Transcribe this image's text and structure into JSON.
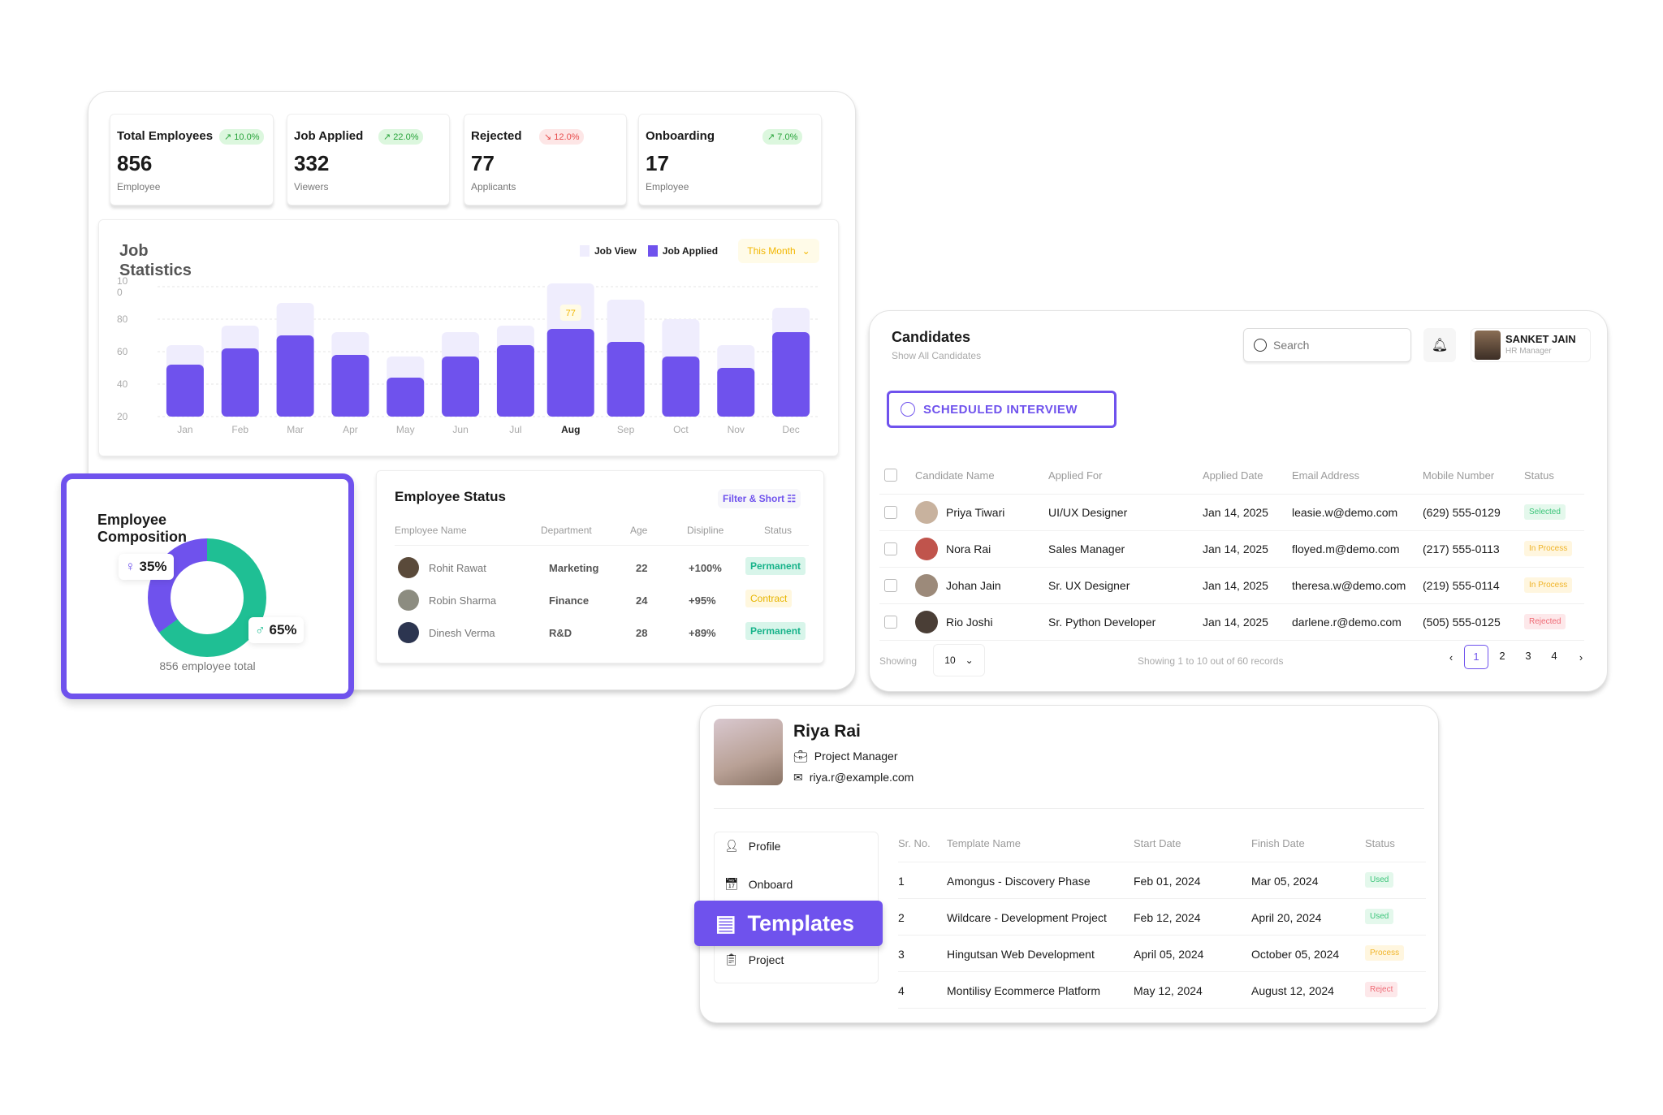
{
  "colors": {
    "accent": "#6f52ed",
    "teal": "#1fbf94",
    "job_view": "#efedfd",
    "yellow": "#f2b600"
  },
  "stats": [
    {
      "title": "Total Employees",
      "value": "856",
      "sub": "Employee",
      "change": "10.0%",
      "trend": "up"
    },
    {
      "title": "Job Applied",
      "value": "332",
      "sub": "Viewers",
      "change": "22.0%",
      "trend": "up"
    },
    {
      "title": "Rejected",
      "value": "77",
      "sub": "Applicants",
      "change": "12.0%",
      "trend": "down"
    },
    {
      "title": "Onboarding",
      "value": "17",
      "sub": "Employee",
      "change": "7.0%",
      "trend": "up"
    }
  ],
  "job_stats": {
    "title_line1": "Job",
    "title_line2": "Statistics",
    "period": "This Month",
    "highlight_label": "77"
  },
  "chart_data": {
    "type": "bar",
    "title": "Job Statistics",
    "categories": [
      "Jan",
      "Feb",
      "Mar",
      "Apr",
      "May",
      "Jun",
      "Jul",
      "Aug",
      "Sep",
      "Oct",
      "Nov",
      "Dec"
    ],
    "highlighted_category": "Aug",
    "series": [
      {
        "name": "Job View",
        "values": [
          64,
          76,
          90,
          72,
          57,
          72,
          76,
          102,
          92,
          80,
          64,
          87
        ],
        "color": "#efedfd"
      },
      {
        "name": "Job Applied",
        "values": [
          52,
          62,
          70,
          58,
          44,
          57,
          64,
          74,
          66,
          57,
          50,
          72
        ],
        "color": "#6f52ed"
      }
    ],
    "yticks": [
      "20",
      "40",
      "60",
      "80",
      "10\n0"
    ],
    "ylim": [
      20,
      100
    ],
    "grid": true,
    "legend": "top-right"
  },
  "composition": {
    "title_line1": "Employee",
    "title_line2": "Composition",
    "female_pct": "35%",
    "male_pct": "65%",
    "female_value": 35,
    "male_value": 65,
    "total_text": "856 employee total"
  },
  "employee_status": {
    "title": "Employee Status",
    "filter_label": "Filter & Short",
    "columns": [
      "Employee Name",
      "Department",
      "Age",
      "Disipline",
      "Status"
    ],
    "rows": [
      {
        "name": "Rohit Rawat",
        "dept": "Marketing",
        "age": "22",
        "disc": "+100%",
        "status": "Permanent"
      },
      {
        "name": "Robin Sharma",
        "dept": "Finance",
        "age": "24",
        "disc": "+95%",
        "status": "Contract"
      },
      {
        "name": "Dinesh Verma",
        "dept": "R&D",
        "age": "28",
        "disc": "+89%",
        "status": "Permanent"
      }
    ]
  },
  "candidates": {
    "title": "Candidates",
    "subtitle": "Show All Candidates",
    "search_placeholder": "Search",
    "user_name": "SANKET JAIN",
    "user_role": "HR Manager",
    "scheduled_label": "SCHEDULED INTERVIEW",
    "columns": [
      "Candidate Name",
      "Applied For",
      "Applied Date",
      "Email Address",
      "Mobile Number",
      "Status"
    ],
    "rows": [
      {
        "name": "Priya Tiwari",
        "role": "UI/UX Designer",
        "date": "Jan 14, 2025",
        "email": "leasie.w@demo.com",
        "phone": "(629) 555-0129",
        "status": "Selected"
      },
      {
        "name": "Nora Rai",
        "role": "Sales Manager",
        "date": "Jan 14, 2025",
        "email": "floyed.m@demo.com",
        "phone": "(217) 555-0113",
        "status": "In Process"
      },
      {
        "name": "Johan Jain",
        "role": "Sr. UX Designer",
        "date": "Jan 14, 2025",
        "email": "theresa.w@demo.com",
        "phone": "(219) 555-0114",
        "status": "In Process"
      },
      {
        "name": "Rio Joshi",
        "role": "Sr. Python Developer",
        "date": "Jan 14, 2025",
        "email": "darlene.r@demo.com",
        "phone": "(505) 555-0125",
        "status": "Rejected"
      }
    ],
    "showing_label": "Showing",
    "page_size": "10",
    "records_text": "Showing 1 to 10 out of 60 records",
    "pages": [
      "1",
      "2",
      "3",
      "4"
    ],
    "current_page": "1"
  },
  "profile": {
    "name": "Riya Rai",
    "role": "Project Manager",
    "email": "riya.r@example.com",
    "menu": [
      "Profile",
      "Onboard",
      "Templates",
      "Project"
    ],
    "active_menu": "Templates",
    "columns": [
      "Sr. No.",
      "Template Name",
      "Start Date",
      "Finish Date",
      "Status"
    ],
    "rows": [
      {
        "no": "1",
        "name": "Amongus - Discovery Phase",
        "start": "Feb 01, 2024",
        "finish": "Mar 05, 2024",
        "status": "Used"
      },
      {
        "no": "2",
        "name": "Wildcare - Development Project",
        "start": "Feb 12, 2024",
        "finish": "April 20, 2024",
        "status": "Used"
      },
      {
        "no": "3",
        "name": "Hingutsan Web Development",
        "start": "April 05, 2024",
        "finish": "October 05, 2024",
        "status": "Process"
      },
      {
        "no": "4",
        "name": "Montilisy Ecommerce Platform",
        "start": "May 12, 2024",
        "finish": "August 12, 2024",
        "status": "Reject"
      }
    ]
  }
}
